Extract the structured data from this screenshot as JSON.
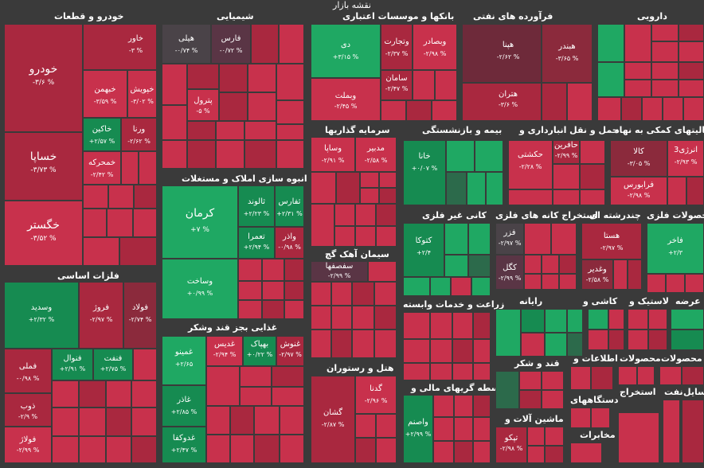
{
  "title": "نقشه بازار",
  "sectors": {
    "khodro": "خودرو و قطعات",
    "shimiyai": "شیمیایی",
    "bankha": "بانکها و موسسات اعتباری",
    "nafti": "فرآورده های نفتی",
    "daroui": "دارویی",
    "sarmaye": "سرمایه گذاریها",
    "bime": "بیمه و بازنشستگی",
    "haml": "حمل و نقل انبارداری و",
    "chand": "فعالیتهای کمکی به نهاد",
    "anbooh": "انبوه سازی املاک و مستغلات",
    "felezat": "فلزات اساسی",
    "kani": "کانی غیر فلزی",
    "estekhraj": "استخراج کانه های فلزی",
    "chandreshte": "چندرشته ای",
    "mahsoolat_felezi": "محصولات فلزی",
    "siman": "سیمان آهک گچ",
    "zeraat": "زراعت و خدمات وابسته",
    "rayane": "رایانه",
    "kashi": "کاشی و",
    "lastik": "لاستیک و",
    "arzeh": "عرضه",
    "ghazaei": "غذایی بجز قند وشکر",
    "ghand": "قند و شکر",
    "etelaat": "اطلاعات و",
    "mahsoolat": "محصولات",
    "mahsoolat2": "محصولات",
    "hotel": "هتل و رستوران",
    "vasete": "واسطه گریهای مالی و",
    "mashin": "ماشین آلات و",
    "dastgah": "دستگاههای",
    "estekhraj2": "استخراج",
    "naft": "نفت",
    "vasayel": "وسایل",
    "mokhaberat": "مخابرات"
  },
  "tiles": {
    "khodro": {
      "name": "خودرو",
      "pct": "-۳/۶ %"
    },
    "khavar": {
      "name": "خاور",
      "pct": "-۳ %"
    },
    "khebahman": {
      "name": "خبهمن",
      "pct": "-۳/۵۹ %"
    },
    "khepoyesh": {
      "name": "خپویش",
      "pct": "-۳/۰۲ %"
    },
    "khaksin": {
      "name": "خاکین",
      "pct": "+۲/۵۷ %"
    },
    "varna": {
      "name": "ورنا",
      "pct": "-۲/۶۲ %"
    },
    "khasapa": {
      "name": "خساپا",
      "pct": "-۳/۷۳ %"
    },
    "khezamia": {
      "name": "خمحرکه",
      "pct": "-۲/۴۲ %"
    },
    "khegostar": {
      "name": "خگستر",
      "pct": "-۳/۵۲ %"
    },
    "hili": {
      "name": "هیلی",
      "pct": "-۰/۷۴ %"
    },
    "fars": {
      "name": "فارس",
      "pct": "-۰/۷۲ %"
    },
    "petrol": {
      "name": "پترول",
      "pct": "-۵ %"
    },
    "day": {
      "name": "دی",
      "pct": "+۳/۱۵ %"
    },
    "vtejarat": {
      "name": "وتجارت",
      "pct": "-۲/۳۷ %"
    },
    "vbesader": {
      "name": "وبصادر",
      "pct": "-۲/۹۸ %"
    },
    "vmellat": {
      "name": "وبملت",
      "pct": "-۲/۴۵ %"
    },
    "saman": {
      "name": "سامان",
      "pct": "-۲/۴۷ %"
    },
    "hapna": {
      "name": "هپنا",
      "pct": "-۲/۶۲ %"
    },
    "hbandar": {
      "name": "هبندر",
      "pct": "-۳/۶۵ %"
    },
    "htran": {
      "name": "هتران",
      "pct": "-۳/۶ %"
    },
    "vasapa": {
      "name": "وساپا",
      "pct": "-۲/۹۱ %"
    },
    "vsadid": {
      "name": "مدبیر",
      "pct": "-۲/۵۸ %"
    },
    "khana": {
      "name": "خانا",
      "pct": "+۰/۰۷ %"
    },
    "hakashti": {
      "name": "حکشتی",
      "pct": "-۲/۲۸ %"
    },
    "hafarin": {
      "name": "حافرین",
      "pct": "-۲/۹۹ %"
    },
    "kala": {
      "name": "کالا",
      "pct": "-۳/۰۵ %"
    },
    "arzesh": {
      "name": "انرژی3",
      "pct": "-۲/۹۳ %"
    },
    "faraboors": {
      "name": "فرابورس",
      "pct": "-۲/۹۸ %"
    },
    "kerman": {
      "name": "کرمان",
      "pct": "+۷ %"
    },
    "saluond": {
      "name": "ثالوند",
      "pct": "+۲/۲۳ %"
    },
    "sfars": {
      "name": "ثفارس",
      "pct": "+۲/۳۱ %"
    },
    "temra": {
      "name": "تعمرا",
      "pct": "+۲/۹۴ %"
    },
    "vaaz": {
      "name": "واذر",
      "pct": "-۰/۹۸ %"
    },
    "vsakhat": {
      "name": "وساخت",
      "pct": "+۰/۹۹ %"
    },
    "vsadid2": {
      "name": "وسدید",
      "pct": "+۲/۳۲ %"
    },
    "foraz": {
      "name": "فروژ",
      "pct": "-۲/۹۷ %"
    },
    "fooolad": {
      "name": "فولاد",
      "pct": "-۲/۷۴ %"
    },
    "fanval": {
      "name": "فنوال",
      "pct": "+۲/۹۱ %"
    },
    "fesanat": {
      "name": "فنفت",
      "pct": "+۲/۷۵ %"
    },
    "fmeli": {
      "name": "فملی",
      "pct": "-۰/۹۸ %"
    },
    "zob": {
      "name": "ذوب",
      "pct": "-۲/۹ %"
    },
    "foolaj": {
      "name": "فولاژ",
      "pct": "-۲/۹۹ %"
    },
    "ketoka": {
      "name": "کتوکا",
      "pct": "+۲/۴"
    },
    "fazar": {
      "name": "فزر",
      "pct": "-۲/۹۷ %"
    },
    "kegol": {
      "name": "کگل",
      "pct": "-۲/۹۹ %"
    },
    "hasta": {
      "name": "هستا",
      "pct": "-۲/۹۷ %"
    },
    "vghadir": {
      "name": "وغدیر",
      "pct": "-۲/۵۸ %"
    },
    "fakhar": {
      "name": "فاخر",
      "pct": "+۲/۳"
    },
    "sefaha": {
      "name": "سفصفها",
      "pct": "-۲/۹۹ %"
    },
    "ghaminoo": {
      "name": "غمینو",
      "pct": "+۲/۶۵"
    },
    "ghadis": {
      "name": "غدیس",
      "pct": "-۲/۹۴ %"
    },
    "bahpak": {
      "name": "بهپاک",
      "pct": "+۰/۲۲ %"
    },
    "ghanoosh": {
      "name": "غنوش",
      "pct": "-۲/۹۷ %"
    },
    "ghafar": {
      "name": "غاذر",
      "pct": "+۲/۸۵ %"
    },
    "ghadokafa": {
      "name": "غدوکفا",
      "pct": "+۲/۴۷ %"
    },
    "gashan": {
      "name": "گشان",
      "pct": "-۲/۸۷ %"
    },
    "gada": {
      "name": "گدنا",
      "pct": "-۲/۹۶ %"
    },
    "vasem": {
      "name": "واصنم",
      "pct": "+۲/۹۹ %"
    },
    "tapko": {
      "name": "تپکو",
      "pct": "-۲/۹۸ %"
    }
  }
}
